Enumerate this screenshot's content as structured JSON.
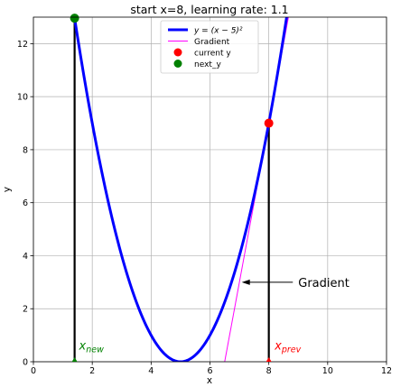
{
  "chart_data": {
    "type": "line",
    "title": "start x=8, learning rate: 1.1",
    "xlabel": "x",
    "ylabel": "y",
    "xlim": [
      0,
      12
    ],
    "ylim": [
      0,
      13
    ],
    "xticks": [
      0,
      2,
      4,
      6,
      8,
      10,
      12
    ],
    "yticks": [
      0,
      2,
      4,
      6,
      8,
      10,
      12
    ],
    "grid": true,
    "legend_position": "top-center",
    "series": [
      {
        "name": "y = (x - 5)^2",
        "legend_label": "y = (x − 5)²",
        "function": "(x - 5)^2",
        "color": "#0000ff"
      },
      {
        "name": "Gradient",
        "legend_label": "Gradient",
        "x": [
          6.5,
          9.0
        ],
        "y": [
          0,
          15
        ],
        "color": "#ff00ff"
      },
      {
        "name": "current y",
        "legend_label": "current y",
        "x": [
          8
        ],
        "y": [
          9
        ],
        "color": "#ff0000",
        "kind": "scatter"
      },
      {
        "name": "next_y",
        "legend_label": "next_y",
        "x": [
          1.4
        ],
        "y": [
          12.96
        ],
        "color": "#008000",
        "kind": "scatter"
      }
    ],
    "vertical_lines": [
      {
        "x": 1.4,
        "y_top": 12.96,
        "color": "#000000"
      },
      {
        "x": 8,
        "y_top": 9,
        "color": "#000000"
      }
    ],
    "annotations": [
      {
        "text": "Gradient",
        "x": 9.0,
        "y": 3.0,
        "arrow_to_x": 7.08,
        "arrow_to_y": 3.0,
        "color": "#000000"
      },
      {
        "text_base": "x",
        "text_sub": "new",
        "x": 1.55,
        "y": 0.25,
        "marker_x": 1.4,
        "marker_y": 0,
        "color": "#008000"
      },
      {
        "text_base": "x",
        "text_sub": "prev",
        "x": 8.2,
        "y": 0.25,
        "marker_x": 8,
        "marker_y": 0,
        "color": "#ff0000"
      }
    ]
  }
}
